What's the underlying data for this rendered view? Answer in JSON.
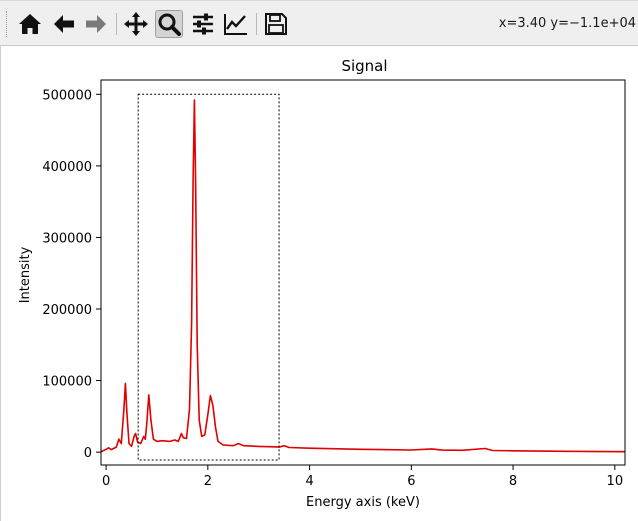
{
  "window": {
    "coords_readout": "x=3.40 y=−1.1e+04"
  },
  "toolbar": {
    "tools": [
      {
        "name": "home",
        "icon": "home-icon"
      },
      {
        "name": "back",
        "icon": "arrow-left-icon"
      },
      {
        "name": "forward",
        "icon": "arrow-right-icon"
      },
      {
        "name": "pan",
        "icon": "move-icon"
      },
      {
        "name": "zoom",
        "icon": "magnifier-icon",
        "active": true
      },
      {
        "name": "subplots",
        "icon": "sliders-icon"
      },
      {
        "name": "customize",
        "icon": "line-chart-icon"
      },
      {
        "name": "save",
        "icon": "floppy-disk-icon"
      }
    ]
  },
  "chart_data": {
    "type": "line",
    "title": "Signal",
    "xlabel": "Energy axis (keV)",
    "ylabel": "Intensity",
    "xlim": [
      -0.1,
      10.2
    ],
    "ylim": [
      -18000,
      520000
    ],
    "xticks": [
      0,
      2,
      4,
      6,
      8,
      10
    ],
    "xtick_labels": [
      "0",
      "2",
      "4",
      "6",
      "8",
      "10"
    ],
    "yticks": [
      0,
      100000,
      200000,
      300000,
      400000,
      500000
    ],
    "ytick_labels": [
      "0",
      "100000",
      "200000",
      "300000",
      "400000",
      "500000"
    ],
    "series": [
      {
        "color": "#e00000",
        "points": [
          [
            -0.1,
            500
          ],
          [
            0.0,
            4000
          ],
          [
            0.05,
            6000
          ],
          [
            0.1,
            3500
          ],
          [
            0.2,
            7000
          ],
          [
            0.25,
            18000
          ],
          [
            0.3,
            12000
          ],
          [
            0.35,
            60000
          ],
          [
            0.38,
            96000
          ],
          [
            0.41,
            55000
          ],
          [
            0.45,
            12000
          ],
          [
            0.5,
            8000
          ],
          [
            0.55,
            22000
          ],
          [
            0.58,
            26000
          ],
          [
            0.62,
            14000
          ],
          [
            0.68,
            12000
          ],
          [
            0.74,
            22000
          ],
          [
            0.77,
            18000
          ],
          [
            0.8,
            40000
          ],
          [
            0.84,
            80000
          ],
          [
            0.88,
            45000
          ],
          [
            0.93,
            18000
          ],
          [
            1.0,
            15000
          ],
          [
            1.1,
            16000
          ],
          [
            1.25,
            15000
          ],
          [
            1.35,
            17000
          ],
          [
            1.42,
            15000
          ],
          [
            1.48,
            26000
          ],
          [
            1.52,
            20000
          ],
          [
            1.58,
            19000
          ],
          [
            1.64,
            60000
          ],
          [
            1.68,
            180000
          ],
          [
            1.71,
            380000
          ],
          [
            1.735,
            492000
          ],
          [
            1.76,
            380000
          ],
          [
            1.79,
            150000
          ],
          [
            1.83,
            45000
          ],
          [
            1.88,
            22000
          ],
          [
            1.94,
            24000
          ],
          [
            2.0,
            52000
          ],
          [
            2.05,
            79000
          ],
          [
            2.1,
            65000
          ],
          [
            2.15,
            35000
          ],
          [
            2.2,
            15000
          ],
          [
            2.3,
            10000
          ],
          [
            2.5,
            9000
          ],
          [
            2.6,
            12000
          ],
          [
            2.7,
            9000
          ],
          [
            3.0,
            8000
          ],
          [
            3.3,
            7500
          ],
          [
            3.4,
            7000
          ],
          [
            3.5,
            9000
          ],
          [
            3.6,
            6500
          ],
          [
            4.0,
            5500
          ],
          [
            5.0,
            4000
          ],
          [
            6.0,
            3000
          ],
          [
            6.4,
            4500
          ],
          [
            6.6,
            2800
          ],
          [
            7.0,
            2500
          ],
          [
            7.45,
            5000
          ],
          [
            7.6,
            2300
          ],
          [
            8.0,
            1800
          ],
          [
            9.0,
            1200
          ],
          [
            10.2,
            600
          ]
        ]
      }
    ],
    "zoom_rect": {
      "x0": 0.63,
      "x1": 3.4,
      "y0": -11000,
      "y1": 500000
    }
  }
}
